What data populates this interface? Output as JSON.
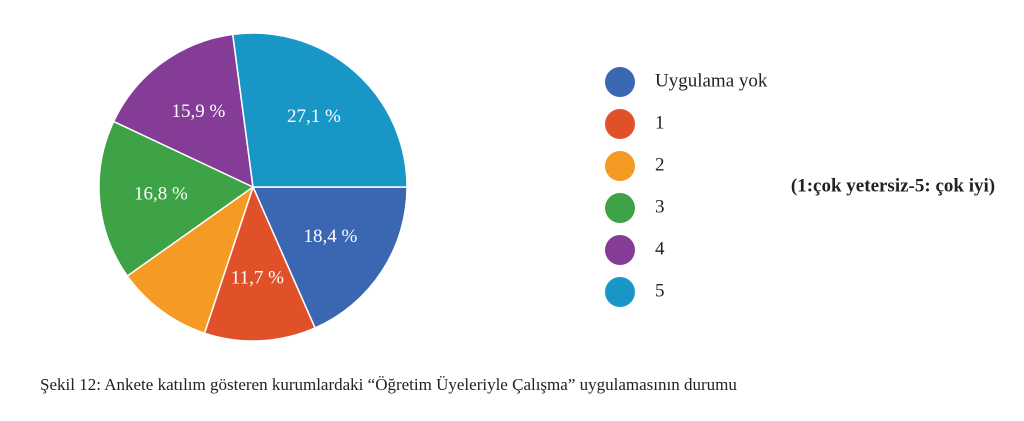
{
  "chart_data": {
    "type": "pie",
    "categories": [
      "Uygulama yok",
      "1",
      "2",
      "3",
      "4",
      "5"
    ],
    "values": [
      18.4,
      11.7,
      10.1,
      16.8,
      15.9,
      27.1
    ],
    "value_labels": [
      "18,4 %",
      "11,7 %",
      null,
      "16,8 %",
      "15,9 %",
      "27,1 %"
    ],
    "colors": [
      "#3b66b1",
      "#e0512a",
      "#f59a23",
      "#3ea346",
      "#843c97",
      "#1897c7"
    ],
    "annotation": "(1:çok yetersiz-5: çok iyi)",
    "caption": "Şekil 12: Ankete katılım gösteren kurumlardaki “Öğretim Üyeleriyle Çalışma” uygulamasının durumu"
  }
}
